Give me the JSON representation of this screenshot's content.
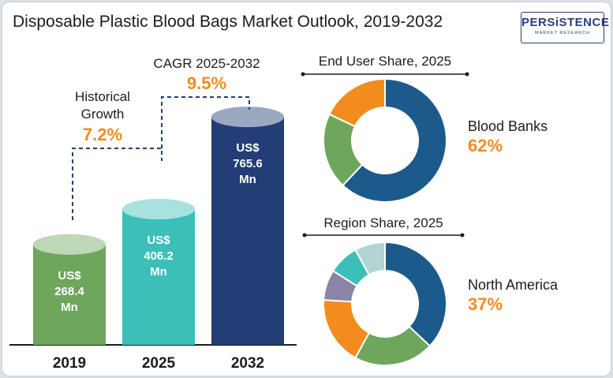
{
  "title": "Disposable Plastic Blood Bags Market Outlook, 2019-2032",
  "logo": {
    "name": "PERSiSTENCE",
    "tagline": "MARKET RESEARCH"
  },
  "colors": {
    "bar_2019": "#6ea65c",
    "bar_2025": "#3cbfb8",
    "bar_2032": "#233d76",
    "accent": "#f28c1f",
    "text": "#1c1c1c"
  },
  "chart_data": [
    {
      "type": "bar",
      "categories": [
        "2019",
        "2025",
        "2032"
      ],
      "values": [
        268.4,
        406.2,
        765.6
      ],
      "value_labels": [
        [
          "US$",
          "268.4",
          "Mn"
        ],
        [
          "US$",
          "406.2",
          "Mn"
        ],
        [
          "US$",
          "765.6",
          "Mn"
        ]
      ],
      "annotations": [
        {
          "label_lines": [
            "Historical",
            "Growth"
          ],
          "value": "7.2%"
        },
        {
          "label_lines": [
            "CAGR 2025-2032"
          ],
          "value": "9.5%"
        }
      ]
    },
    {
      "type": "pie",
      "title": "End User Share, 2025",
      "highlight": {
        "label": "Blood Banks",
        "value": "62%"
      },
      "slices": [
        {
          "value": 62,
          "color": "#1c5a8c"
        },
        {
          "value": 20,
          "color": "#6ea65c"
        },
        {
          "value": 18,
          "color": "#f28c1f"
        }
      ]
    },
    {
      "type": "pie",
      "title": "Region Share, 2025",
      "highlight": {
        "label": "North America",
        "value": "37%"
      },
      "slices": [
        {
          "value": 37,
          "color": "#1c5a8c"
        },
        {
          "value": 21,
          "color": "#6ea65c"
        },
        {
          "value": 18,
          "color": "#f28c1f"
        },
        {
          "value": 8,
          "color": "#8a84a8"
        },
        {
          "value": 8,
          "color": "#3cbfb8"
        },
        {
          "value": 8,
          "color": "#b2d4d2"
        }
      ]
    }
  ]
}
